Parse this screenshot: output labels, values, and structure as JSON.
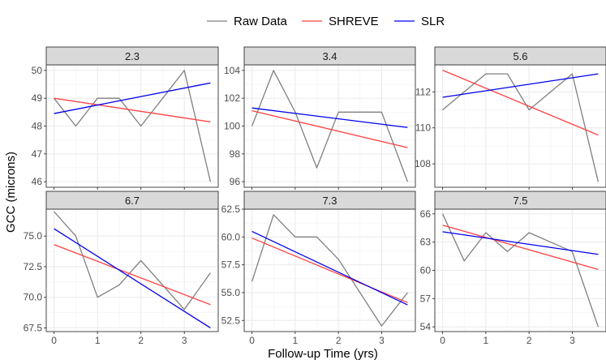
{
  "chart_data": {
    "type": "line",
    "xlabel": "Follow-up Time (yrs)",
    "ylabel": "GCC (microns)",
    "legend": {
      "position": "top",
      "entries": [
        {
          "name": "Raw Data",
          "color": "#7f7f7f"
        },
        {
          "name": "SHREVE",
          "color": "#ff4040"
        },
        {
          "name": "SLR",
          "color": "#0000ee"
        }
      ]
    },
    "x_ticks": [
      0,
      1,
      2,
      3
    ],
    "xlim": [
      -0.18,
      3.78
    ],
    "panels": [
      {
        "title": "2.3",
        "ylim": [
          45.8,
          50.2
        ],
        "y_ticks": [
          46,
          47,
          48,
          49,
          50
        ],
        "y_tick_labels": [
          "46",
          "47",
          "48",
          "49",
          "50"
        ],
        "raw": {
          "x": [
            0,
            0.5,
            1,
            1.5,
            2,
            2.5,
            3,
            3.6
          ],
          "y": [
            49,
            48,
            49,
            49,
            48,
            49,
            50,
            46
          ]
        },
        "shreve": {
          "x": [
            0,
            3.6
          ],
          "y": [
            49.0,
            48.15
          ]
        },
        "slr": {
          "x": [
            0,
            3.6
          ],
          "y": [
            48.45,
            49.55
          ]
        }
      },
      {
        "title": "3.4",
        "ylim": [
          95.6,
          104.4
        ],
        "y_ticks": [
          96,
          98,
          100,
          102,
          104
        ],
        "y_tick_labels": [
          "96",
          "98",
          "100",
          "102",
          "104"
        ],
        "raw": {
          "x": [
            0,
            0.5,
            1,
            1.5,
            2,
            2.5,
            3,
            3.6
          ],
          "y": [
            100,
            104,
            101,
            97,
            101,
            101,
            101,
            96
          ]
        },
        "shreve": {
          "x": [
            0,
            3.6
          ],
          "y": [
            101.1,
            98.45
          ]
        },
        "slr": {
          "x": [
            0,
            3.6
          ],
          "y": [
            101.3,
            99.9
          ]
        }
      },
      {
        "title": "5.6",
        "ylim": [
          106.7,
          113.5
        ],
        "y_ticks": [
          108,
          110,
          112
        ],
        "y_tick_labels": [
          "108",
          "110",
          "112"
        ],
        "raw": {
          "x": [
            0,
            0.5,
            1,
            1.5,
            2,
            2.5,
            3,
            3.6
          ],
          "y": [
            111,
            112,
            113,
            113,
            111,
            112,
            113,
            107
          ]
        },
        "shreve": {
          "x": [
            0,
            3.6
          ],
          "y": [
            113.2,
            109.6
          ]
        },
        "slr": {
          "x": [
            0,
            3.6
          ],
          "y": [
            111.7,
            113.0
          ]
        }
      },
      {
        "title": "6.7",
        "ylim": [
          67.2,
          77.2
        ],
        "y_ticks": [
          67.5,
          70.0,
          72.5,
          75.0
        ],
        "y_tick_labels": [
          "67.5",
          "70.0",
          "72.5",
          "75.0"
        ],
        "raw": {
          "x": [
            0,
            0.5,
            1,
            1.5,
            2,
            2.5,
            3,
            3.6
          ],
          "y": [
            77,
            75,
            70,
            71,
            73,
            71,
            69,
            72
          ]
        },
        "shreve": {
          "x": [
            0,
            3.6
          ],
          "y": [
            74.3,
            69.4
          ]
        },
        "slr": {
          "x": [
            0,
            3.6
          ],
          "y": [
            75.6,
            67.5
          ]
        }
      },
      {
        "title": "7.3",
        "ylim": [
          51.5,
          62.5
        ],
        "y_ticks": [
          52.5,
          55.0,
          57.5,
          60.0,
          62.5
        ],
        "y_tick_labels": [
          "52.5",
          "55.0",
          "57.5",
          "60.0",
          "62.5"
        ],
        "raw": {
          "x": [
            0,
            0.5,
            1,
            1.5,
            2,
            2.5,
            3,
            3.6
          ],
          "y": [
            56,
            62,
            60,
            60,
            58,
            55,
            52,
            55
          ]
        },
        "shreve": {
          "x": [
            0,
            3.6
          ],
          "y": [
            59.9,
            54.1
          ]
        },
        "slr": {
          "x": [
            0,
            3.6
          ],
          "y": [
            60.5,
            53.9
          ]
        }
      },
      {
        "title": "7.5",
        "ylim": [
          53.5,
          66.5
        ],
        "y_ticks": [
          54,
          57,
          60,
          63,
          66
        ],
        "y_tick_labels": [
          "54",
          "57",
          "60",
          "63",
          "66"
        ],
        "raw": {
          "x": [
            0,
            0.5,
            1,
            1.5,
            2,
            2.5,
            3,
            3.6
          ],
          "y": [
            66,
            61,
            64,
            62,
            64,
            63,
            62,
            54
          ]
        },
        "shreve": {
          "x": [
            0,
            3.6
          ],
          "y": [
            64.8,
            60.1
          ]
        },
        "slr": {
          "x": [
            0,
            3.6
          ],
          "y": [
            64.1,
            61.7
          ]
        }
      }
    ]
  }
}
